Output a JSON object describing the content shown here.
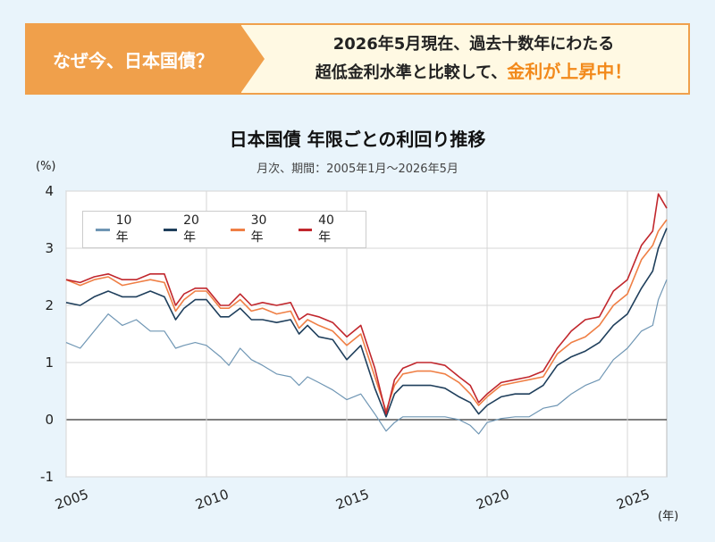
{
  "banner": {
    "left_text": "なぜ今、日本国債？",
    "line1": "2026年5月現在、過去十数年にわたる",
    "line2_prefix": "超低金利水準と比較して、",
    "line2_accent": "金利が上昇中！"
  },
  "chart_data": {
    "type": "line",
    "title": "日本国債  年限ごとの利回り推移",
    "subtitle": "月次、期間：2005年1月〜2026年5月",
    "ylabel": "(%)",
    "xlabel": "(年)",
    "ylim": [
      -1,
      4
    ],
    "xlim": [
      2005,
      2026.4
    ],
    "yticks": [
      "4",
      "3",
      "2",
      "1",
      "0",
      "-1"
    ],
    "xticks": [
      "2005",
      "2010",
      "2015",
      "2020",
      "2025"
    ],
    "grid": true,
    "legend_position": "top-left",
    "x": [
      2005.0,
      2005.5,
      2006.0,
      2006.5,
      2007.0,
      2007.5,
      2008.0,
      2008.5,
      2008.9,
      2009.2,
      2009.6,
      2010.0,
      2010.5,
      2010.8,
      2011.2,
      2011.6,
      2012.0,
      2012.5,
      2013.0,
      2013.3,
      2013.6,
      2014.0,
      2014.5,
      2015.0,
      2015.5,
      2016.0,
      2016.4,
      2016.7,
      2017.0,
      2017.5,
      2018.0,
      2018.5,
      2019.0,
      2019.4,
      2019.7,
      2020.0,
      2020.5,
      2021.0,
      2021.5,
      2022.0,
      2022.5,
      2023.0,
      2023.5,
      2024.0,
      2024.5,
      2025.0,
      2025.5,
      2025.9,
      2026.1,
      2026.4
    ],
    "series": [
      {
        "name": "10年",
        "color": "#6f96b4",
        "values": [
          1.35,
          1.25,
          1.55,
          1.85,
          1.65,
          1.75,
          1.55,
          1.55,
          1.25,
          1.3,
          1.35,
          1.3,
          1.1,
          0.95,
          1.25,
          1.05,
          0.95,
          0.8,
          0.75,
          0.6,
          0.75,
          0.65,
          0.52,
          0.35,
          0.45,
          0.1,
          -0.2,
          -0.05,
          0.05,
          0.05,
          0.05,
          0.05,
          0.0,
          -0.1,
          -0.25,
          -0.05,
          0.02,
          0.05,
          0.05,
          0.2,
          0.25,
          0.45,
          0.6,
          0.7,
          1.05,
          1.25,
          1.55,
          1.65,
          2.1,
          2.45
        ]
      },
      {
        "name": "20年",
        "color": "#1f3f5c",
        "values": [
          2.05,
          2.0,
          2.15,
          2.25,
          2.15,
          2.15,
          2.25,
          2.15,
          1.75,
          1.95,
          2.1,
          2.1,
          1.8,
          1.8,
          1.95,
          1.75,
          1.75,
          1.7,
          1.75,
          1.5,
          1.65,
          1.45,
          1.4,
          1.05,
          1.3,
          0.55,
          0.05,
          0.45,
          0.6,
          0.6,
          0.6,
          0.55,
          0.4,
          0.3,
          0.1,
          0.25,
          0.4,
          0.45,
          0.45,
          0.6,
          0.95,
          1.1,
          1.2,
          1.35,
          1.65,
          1.85,
          2.3,
          2.6,
          3.0,
          3.35
        ]
      },
      {
        "name": "30年",
        "color": "#ef7f45",
        "values": [
          2.45,
          2.35,
          2.45,
          2.5,
          2.35,
          2.4,
          2.45,
          2.4,
          1.9,
          2.1,
          2.25,
          2.25,
          1.95,
          1.95,
          2.1,
          1.9,
          1.95,
          1.85,
          1.9,
          1.6,
          1.75,
          1.65,
          1.55,
          1.3,
          1.5,
          0.75,
          0.15,
          0.6,
          0.8,
          0.85,
          0.85,
          0.8,
          0.65,
          0.45,
          0.25,
          0.4,
          0.6,
          0.65,
          0.7,
          0.75,
          1.15,
          1.35,
          1.45,
          1.65,
          2.0,
          2.2,
          2.8,
          3.05,
          3.3,
          3.5
        ]
      },
      {
        "name": "40年",
        "color": "#c1272d",
        "values": [
          2.45,
          2.4,
          2.5,
          2.55,
          2.45,
          2.45,
          2.55,
          2.55,
          2.0,
          2.2,
          2.3,
          2.3,
          2.0,
          2.0,
          2.2,
          2.0,
          2.05,
          2.0,
          2.05,
          1.75,
          1.85,
          1.8,
          1.7,
          1.45,
          1.65,
          0.9,
          0.1,
          0.7,
          0.9,
          1.0,
          1.0,
          0.95,
          0.75,
          0.6,
          0.3,
          0.45,
          0.65,
          0.7,
          0.75,
          0.85,
          1.25,
          1.55,
          1.75,
          1.8,
          2.25,
          2.45,
          3.05,
          3.3,
          3.95,
          3.7
        ]
      }
    ]
  }
}
